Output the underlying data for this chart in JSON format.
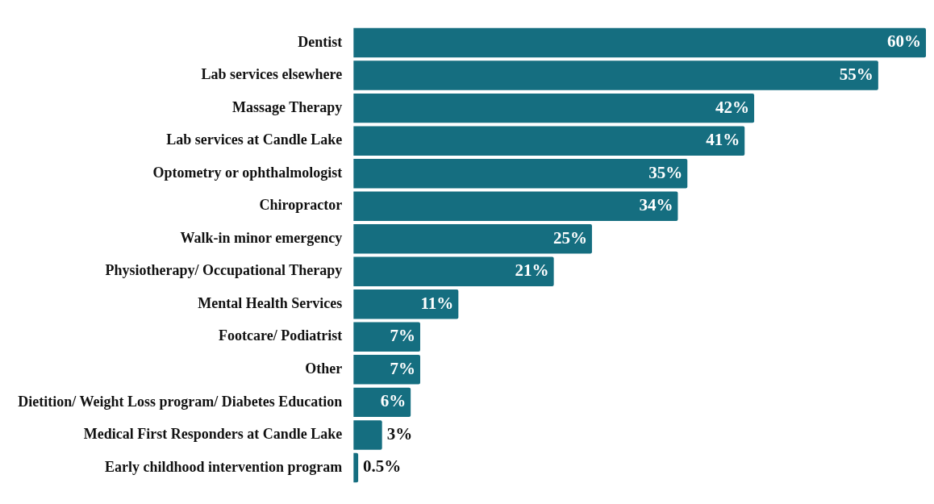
{
  "chart_data": {
    "type": "bar",
    "orientation": "horizontal",
    "categories": [
      "Dentist",
      "Lab services elsewhere",
      "Massage Therapy",
      "Lab services at Candle Lake",
      "Optometry or ophthalmologist",
      "Chiropractor",
      "Walk-in minor emergency",
      "Physiotherapy/ Occupational Therapy",
      "Mental Health Services",
      "Footcare/ Podiatrist",
      "Other",
      "Dietition/ Weight Loss program/ Diabetes Education",
      "Medical First Responders at Candle Lake",
      "Early childhood intervention program"
    ],
    "values": [
      60,
      55,
      42,
      41,
      35,
      34,
      25,
      21,
      11,
      7,
      7,
      6,
      3,
      0.5
    ],
    "value_labels": [
      "60%",
      "55%",
      "42%",
      "41%",
      "35%",
      "34%",
      "25%",
      "21%",
      "11%",
      "7%",
      "7%",
      "6%",
      "3%",
      "0.5%"
    ],
    "color": "#156e80",
    "legend": false
  }
}
